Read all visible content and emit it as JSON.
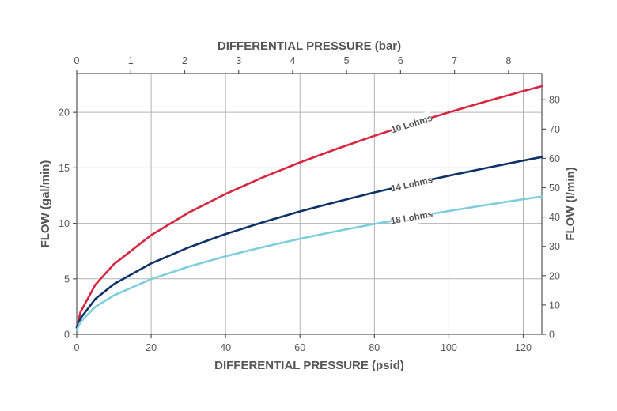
{
  "chart_data": {
    "type": "line",
    "x_bottom": {
      "label": "DIFFERENTIAL PRESSURE (psid)",
      "range": [
        0,
        125
      ],
      "ticks": [
        0,
        20,
        40,
        60,
        80,
        100,
        120
      ]
    },
    "x_top": {
      "label": "DIFFERENTIAL PRESSURE (bar)",
      "range": [
        0,
        8.618
      ],
      "ticks": [
        0,
        1,
        2,
        3,
        4,
        5,
        6,
        7,
        8
      ]
    },
    "y_left": {
      "label": "FLOW (gal/min)",
      "range": [
        0,
        23.5
      ],
      "ticks": [
        0,
        5,
        10,
        15,
        20
      ]
    },
    "y_right": {
      "label": "FLOW (l/min)",
      "range": [
        0,
        88.96
      ],
      "ticks": [
        0,
        10,
        20,
        30,
        40,
        50,
        60,
        70,
        80
      ]
    },
    "grid": true,
    "series": [
      {
        "name": "10 Lohms",
        "color": "#d7263d",
        "x": [
          0,
          1,
          5,
          10,
          20,
          30,
          40,
          50,
          60,
          70,
          80,
          90,
          100,
          110,
          120,
          125
        ],
        "y": [
          0.6,
          2.0,
          4.47,
          6.32,
          8.94,
          10.95,
          12.65,
          14.14,
          15.49,
          16.73,
          17.89,
          18.97,
          20.0,
          20.98,
          21.91,
          22.36
        ]
      },
      {
        "name": "14 Lohms",
        "color": "#0d3268",
        "x": [
          0,
          1,
          5,
          10,
          20,
          30,
          40,
          50,
          60,
          70,
          80,
          90,
          100,
          110,
          120,
          125
        ],
        "y": [
          0.6,
          1.43,
          3.19,
          4.52,
          6.39,
          7.82,
          9.04,
          10.1,
          11.07,
          11.95,
          12.78,
          13.55,
          14.29,
          14.98,
          15.65,
          15.97
        ]
      },
      {
        "name": "18 Lohms",
        "color": "#7ccedd",
        "x": [
          0,
          1,
          5,
          10,
          20,
          30,
          40,
          50,
          60,
          70,
          80,
          90,
          100,
          110,
          120,
          125
        ],
        "y": [
          0.4,
          1.11,
          2.48,
          3.51,
          4.97,
          6.09,
          7.03,
          7.86,
          8.61,
          9.3,
          9.94,
          10.54,
          11.11,
          11.65,
          12.17,
          12.42
        ]
      }
    ],
    "curve_labels": [
      {
        "text": "10 Lohms",
        "x": 90,
        "series": 0
      },
      {
        "text": "14 Lohms",
        "x": 90,
        "series": 1
      },
      {
        "text": "18 Lohms",
        "x": 90,
        "series": 2
      }
    ]
  }
}
